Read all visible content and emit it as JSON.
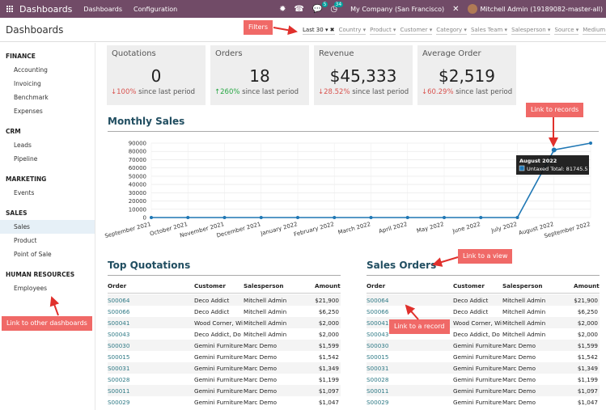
{
  "navbar": {
    "brand": "Dashboards",
    "menu": [
      "Dashboards",
      "Configuration"
    ],
    "message_badge": "5",
    "activity_badge": "34",
    "company": "My Company (San Francisco)",
    "user": "Mitchell Admin (19189082-master-all)"
  },
  "control_panel": {
    "title": "Dashboards",
    "filters": [
      "Last 30",
      "Country",
      "Product",
      "Customer",
      "Category",
      "Sales Team",
      "Salesperson",
      "Source",
      "Medium"
    ]
  },
  "sidebar": {
    "groups": [
      {
        "name": "FINANCE",
        "items": [
          "Accounting",
          "Invoicing",
          "Benchmark",
          "Expenses"
        ]
      },
      {
        "name": "CRM",
        "items": [
          "Leads",
          "Pipeline"
        ]
      },
      {
        "name": "MARKETING",
        "items": [
          "Events"
        ]
      },
      {
        "name": "SALES",
        "items": [
          "Sales",
          "Product",
          "Point of Sale"
        ]
      },
      {
        "name": "HUMAN RESOURCES",
        "items": [
          "Employees"
        ]
      }
    ],
    "active_item": "Sales"
  },
  "kpis": [
    {
      "title": "Quotations",
      "value": "0",
      "delta": "100%",
      "direction": "down",
      "suffix": "since last period"
    },
    {
      "title": "Orders",
      "value": "18",
      "delta": "260%",
      "direction": "up",
      "suffix": "since last period"
    },
    {
      "title": "Revenue",
      "value": "$45,333",
      "delta": "28.52%",
      "direction": "down",
      "suffix": "since last period"
    },
    {
      "title": "Average Order",
      "value": "$2,519",
      "delta": "60.29%",
      "direction": "down",
      "suffix": "since last period"
    }
  ],
  "monthly_sales": {
    "title": "Monthly Sales",
    "tooltip_title": "August 2022",
    "tooltip_label": "Untaxed Total: 81745.5"
  },
  "chart_data": {
    "type": "line",
    "title": "Monthly Sales",
    "categories": [
      "September 2021",
      "October 2021",
      "November 2021",
      "December 2021",
      "January 2022",
      "February 2022",
      "March 2022",
      "April 2022",
      "May 2022",
      "June 2022",
      "July 2022",
      "August 2022",
      "September 2022"
    ],
    "series": [
      {
        "values": [
          0,
          0,
          0,
          0,
          0,
          0,
          0,
          0,
          0,
          0,
          0,
          81745.5,
          90000
        ]
      }
    ],
    "ylim": [
      0,
      90000
    ],
    "yticks": [
      0,
      10000,
      20000,
      30000,
      40000,
      50000,
      60000,
      70000,
      80000,
      90000
    ],
    "grid": true,
    "line_color": "#1f77b4"
  },
  "top_quotations": {
    "title": "Top Quotations",
    "columns": [
      "Order",
      "Customer",
      "Salesperson",
      "Amount"
    ],
    "rows": [
      [
        "S00064",
        "Deco Addict",
        "Mitchell Admin",
        "$21,900"
      ],
      [
        "S00066",
        "Deco Addict",
        "Mitchell Admin",
        "$6,250"
      ],
      [
        "S00041",
        "Wood Corner, Wi",
        "Mitchell Admin",
        "$2,000"
      ],
      [
        "S00043",
        "Deco Addict, Do",
        "Mitchell Admin",
        "$2,000"
      ],
      [
        "S00030",
        "Gemini Furniture",
        "Marc Demo",
        "$1,599"
      ],
      [
        "S00015",
        "Gemini Furniture",
        "Marc Demo",
        "$1,542"
      ],
      [
        "S00031",
        "Gemini Furniture",
        "Marc Demo",
        "$1,349"
      ],
      [
        "S00028",
        "Gemini Furniture",
        "Marc Demo",
        "$1,199"
      ],
      [
        "S00011",
        "Gemini Furniture",
        "Marc Demo",
        "$1,097"
      ],
      [
        "S00029",
        "Gemini Furniture",
        "Marc Demo",
        "$1,047"
      ]
    ]
  },
  "sales_orders": {
    "title": "Sales Orders",
    "columns": [
      "Order",
      "Customer",
      "Salesperson",
      "Amount"
    ],
    "rows": [
      [
        "S00064",
        "Deco Addict",
        "Mitchell Admin",
        "$21,900"
      ],
      [
        "S00066",
        "Deco Addict",
        "Mitchell Admin",
        "$6,250"
      ],
      [
        "S00041",
        "Wood Corner, Wi",
        "Mitchell Admin",
        "$2,000"
      ],
      [
        "S00043",
        "Deco Addict, Do",
        "Mitchell Admin",
        "$2,000"
      ],
      [
        "S00030",
        "Gemini Furniture",
        "Marc Demo",
        "$1,599"
      ],
      [
        "S00015",
        "Gemini Furniture",
        "Marc Demo",
        "$1,542"
      ],
      [
        "S00031",
        "Gemini Furniture",
        "Marc Demo",
        "$1,349"
      ],
      [
        "S00028",
        "Gemini Furniture",
        "Marc Demo",
        "$1,199"
      ],
      [
        "S00011",
        "Gemini Furniture",
        "Marc Demo",
        "$1,097"
      ],
      [
        "S00029",
        "Gemini Furniture",
        "Marc Demo",
        "$1,047"
      ]
    ]
  },
  "callouts": {
    "filters": "Filters",
    "link_to_records": "Link to records",
    "link_to_view": "Link to a view",
    "link_to_record": "Link to a record",
    "link_to_other_dashboards": "Link to other dashboards"
  },
  "colors": {
    "navbar": "#714b67",
    "title": "#214e61",
    "link": "#2f7a86",
    "callout": "#f06967"
  }
}
